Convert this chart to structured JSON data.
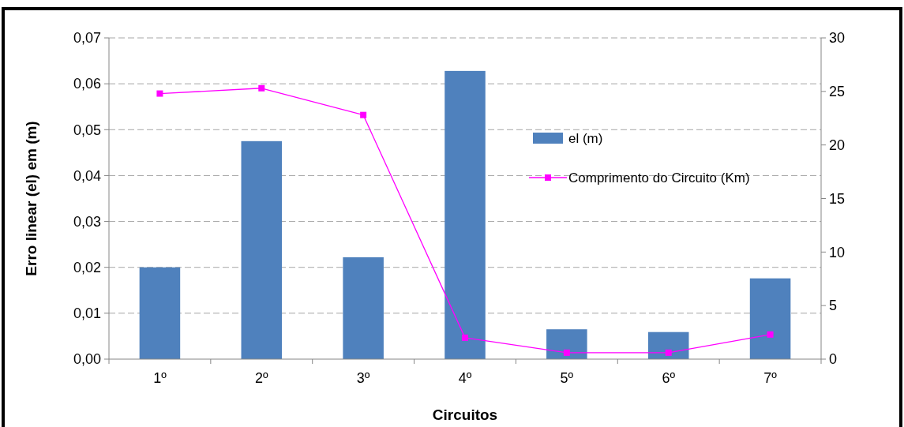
{
  "chart_data": {
    "type": "bar",
    "xlabel": "Circuitos",
    "ylabel": "Erro linear (el) em (m)",
    "categories": [
      "1º",
      "2º",
      "3º",
      "4º",
      "5º",
      "6º",
      "7º"
    ],
    "series": [
      {
        "name": "el (m)",
        "color": "#4f81bd",
        "values": [
          0.02,
          0.0475,
          0.0222,
          0.0628,
          0.0065,
          0.0059,
          0.0176
        ]
      },
      {
        "name": "Comprimento do Circuito (Km)",
        "type": "line",
        "axis": "y2",
        "color": "#ff00ff",
        "marker": "square",
        "values": [
          24.8,
          25.3,
          22.8,
          2.0,
          0.6,
          0.6,
          2.3
        ]
      }
    ],
    "ylim": [
      0,
      0.07
    ],
    "yticks": [
      {
        "value": 0,
        "label": "0,00"
      },
      {
        "value": 0.01,
        "label": "0,01"
      },
      {
        "value": 0.02,
        "label": "0,02"
      },
      {
        "value": 0.03,
        "label": "0,03"
      },
      {
        "value": 0.04,
        "label": "0,04"
      },
      {
        "value": 0.05,
        "label": "0,05"
      },
      {
        "value": 0.06,
        "label": "0,06"
      },
      {
        "value": 0.07,
        "label": "0,07"
      }
    ],
    "y2lim": [
      0,
      30
    ],
    "y2ticks": [
      0,
      5,
      10,
      15,
      20,
      25,
      30
    ],
    "grid": "y",
    "legend": "right"
  }
}
